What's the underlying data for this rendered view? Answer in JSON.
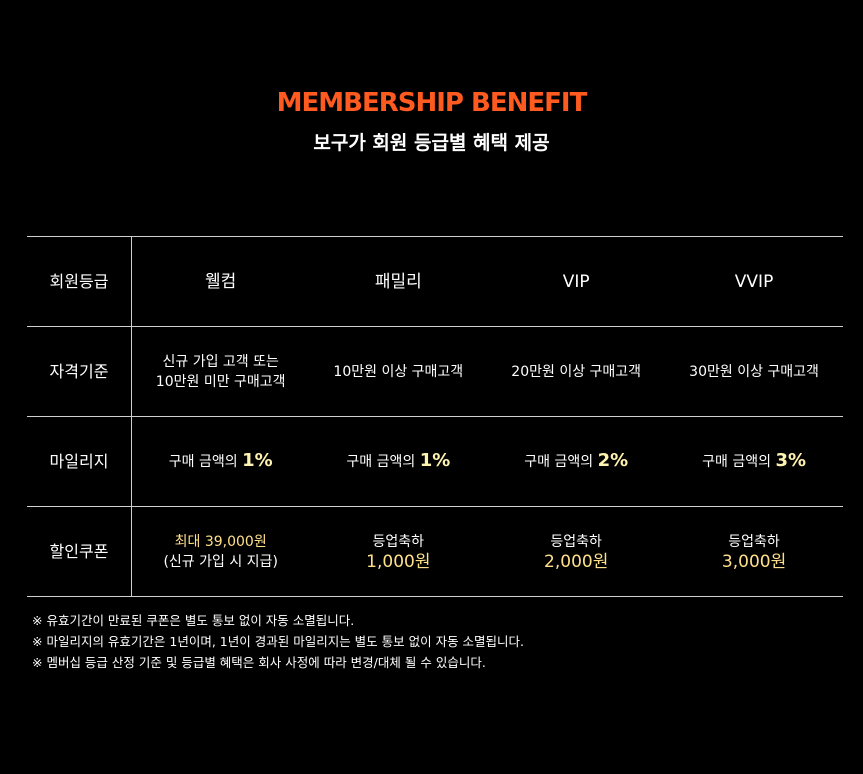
{
  "header": {
    "title": "MEMBERSHIP BENEFIT",
    "subtitle": "보구가 회원 등급별 혜택 제공"
  },
  "table": {
    "row_header_label": "회원등급",
    "grades": [
      "웰컴",
      "패밀리",
      "VIP",
      "VVIP"
    ],
    "rows": {
      "qualification": {
        "label": "자격기준",
        "welcome": [
          "신규 가입 고객 또는",
          "10만원 미만 구매고객"
        ],
        "family": "10만원 이상 구매고객",
        "vip": "20만원 이상 구매고객",
        "vvip": "30만원 이상 구매고객"
      },
      "mileage": {
        "label": "마일리지",
        "prefix": "구매 금액의",
        "rates": [
          "1%",
          "1%",
          "2%",
          "3%"
        ]
      },
      "coupon": {
        "label": "할인쿠폰",
        "welcome_main": "최대 39,000원",
        "welcome_sub": "(신규 가입 시 지급)",
        "upgrade_label": "등업축하",
        "family_amount": "1,000원",
        "vip_amount": "2,000원",
        "vvip_amount": "3,000원"
      }
    }
  },
  "notes": [
    "※ 유효기간이 만료된 쿠폰은 별도 통보 없이 자동 소멸됩니다.",
    "※ 마일리지의 유효기간은 1년이며, 1년이 경과된 마일리지는 별도 통보 없이 자동 소멸됩니다.",
    "※ 멤버십 등급 산정 기준 및 등급별 혜택은 회사 사정에 따라 변경/대체 될 수 있습니다."
  ],
  "colors": {
    "background": "#000000",
    "accent": "#ff5a1f",
    "highlight": "#ffe08a"
  }
}
